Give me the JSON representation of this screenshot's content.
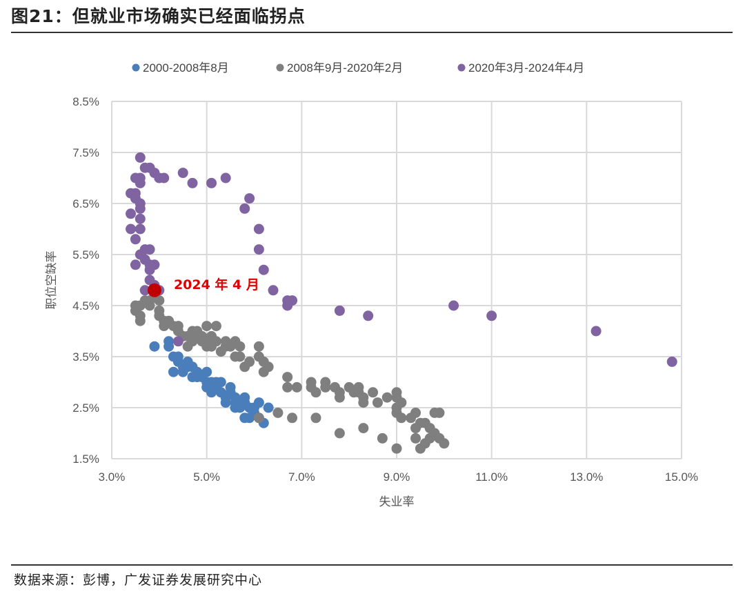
{
  "header": {
    "title": "图21：但就业市场确实已经面临拐点"
  },
  "footer": {
    "source": "数据来源：彭博，广发证券发展研究中心"
  },
  "chart_data": {
    "type": "scatter",
    "xlabel": "失业率",
    "ylabel": "职位空缺率",
    "xlim": [
      3.0,
      15.0
    ],
    "ylim": [
      1.5,
      8.5
    ],
    "x_ticks": [
      "3.0%",
      "5.0%",
      "7.0%",
      "9.0%",
      "11.0%",
      "13.0%",
      "15.0%"
    ],
    "y_ticks": [
      "1.5%",
      "2.5%",
      "3.5%",
      "4.5%",
      "5.5%",
      "6.5%",
      "7.5%",
      "8.5%"
    ],
    "grid": true,
    "legend_position": "top",
    "series": [
      {
        "name": "2000-2008年8月",
        "color": "#4a7ebb",
        "points": [
          [
            3.9,
            3.7
          ],
          [
            4.2,
            3.7
          ],
          [
            4.2,
            3.8
          ],
          [
            4.3,
            3.5
          ],
          [
            4.4,
            3.4
          ],
          [
            4.3,
            3.2
          ],
          [
            4.5,
            3.3
          ],
          [
            4.5,
            3.2
          ],
          [
            4.6,
            3.3
          ],
          [
            4.7,
            3.3
          ],
          [
            4.7,
            3.1
          ],
          [
            4.8,
            3.2
          ],
          [
            4.9,
            3.1
          ],
          [
            5.0,
            3.0
          ],
          [
            5.0,
            3.2
          ],
          [
            5.0,
            2.9
          ],
          [
            5.1,
            2.8
          ],
          [
            5.1,
            3.0
          ],
          [
            5.2,
            2.9
          ],
          [
            5.2,
            3.0
          ],
          [
            5.3,
            2.8
          ],
          [
            5.3,
            3.0
          ],
          [
            5.4,
            2.7
          ],
          [
            5.4,
            2.6
          ],
          [
            5.5,
            2.8
          ],
          [
            5.5,
            2.9
          ],
          [
            5.6,
            2.7
          ],
          [
            5.6,
            2.5
          ],
          [
            5.7,
            2.6
          ],
          [
            5.7,
            2.5
          ],
          [
            5.8,
            2.6
          ],
          [
            5.8,
            2.7
          ],
          [
            5.9,
            2.5
          ],
          [
            5.9,
            2.3
          ],
          [
            6.0,
            2.4
          ],
          [
            6.0,
            2.5
          ],
          [
            6.1,
            2.6
          ],
          [
            6.1,
            2.3
          ],
          [
            6.2,
            2.2
          ],
          [
            6.3,
            2.5
          ],
          [
            4.4,
            3.5
          ],
          [
            4.6,
            3.4
          ],
          [
            4.8,
            3.1
          ],
          [
            5.6,
            2.6
          ],
          [
            5.8,
            2.3
          ]
        ]
      },
      {
        "name": "2008年9月-2020年2月",
        "color": "#7f7f7f",
        "points": [
          [
            3.5,
            4.5
          ],
          [
            3.5,
            4.4
          ],
          [
            3.6,
            4.2
          ],
          [
            3.6,
            4.3
          ],
          [
            3.6,
            4.5
          ],
          [
            3.7,
            4.6
          ],
          [
            3.8,
            4.6
          ],
          [
            3.8,
            4.5
          ],
          [
            3.9,
            4.7
          ],
          [
            4.0,
            4.6
          ],
          [
            4.0,
            4.4
          ],
          [
            4.0,
            4.3
          ],
          [
            4.1,
            4.2
          ],
          [
            4.1,
            4.1
          ],
          [
            4.2,
            4.2
          ],
          [
            4.3,
            4.1
          ],
          [
            4.4,
            4.0
          ],
          [
            4.4,
            4.1
          ],
          [
            4.5,
            3.9
          ],
          [
            4.6,
            3.9
          ],
          [
            4.7,
            4.0
          ],
          [
            4.7,
            3.8
          ],
          [
            4.8,
            4.0
          ],
          [
            4.8,
            3.9
          ],
          [
            4.9,
            3.8
          ],
          [
            4.9,
            3.9
          ],
          [
            5.0,
            4.1
          ],
          [
            5.0,
            3.8
          ],
          [
            5.1,
            3.9
          ],
          [
            5.1,
            3.7
          ],
          [
            5.2,
            4.1
          ],
          [
            5.2,
            3.8
          ],
          [
            5.3,
            3.6
          ],
          [
            5.4,
            3.8
          ],
          [
            5.5,
            3.7
          ],
          [
            5.6,
            3.5
          ],
          [
            5.6,
            3.8
          ],
          [
            5.7,
            3.7
          ],
          [
            5.7,
            3.5
          ],
          [
            5.8,
            3.3
          ],
          [
            5.9,
            3.4
          ],
          [
            6.1,
            3.5
          ],
          [
            6.1,
            3.7
          ],
          [
            6.2,
            3.4
          ],
          [
            6.2,
            3.2
          ],
          [
            6.3,
            3.3
          ],
          [
            6.1,
            2.3
          ],
          [
            6.5,
            2.4
          ],
          [
            6.7,
            2.9
          ],
          [
            6.7,
            3.1
          ],
          [
            6.8,
            2.3
          ],
          [
            6.9,
            2.9
          ],
          [
            7.2,
            3.0
          ],
          [
            7.2,
            2.9
          ],
          [
            7.3,
            2.8
          ],
          [
            7.3,
            2.3
          ],
          [
            7.5,
            3.0
          ],
          [
            7.5,
            2.9
          ],
          [
            7.7,
            2.9
          ],
          [
            7.8,
            2.8
          ],
          [
            7.8,
            2.7
          ],
          [
            7.8,
            2.0
          ],
          [
            8.0,
            2.9
          ],
          [
            8.1,
            2.8
          ],
          [
            8.2,
            2.9
          ],
          [
            8.2,
            2.8
          ],
          [
            8.3,
            2.7
          ],
          [
            8.3,
            2.6
          ],
          [
            8.3,
            2.1
          ],
          [
            8.5,
            2.8
          ],
          [
            8.6,
            2.6
          ],
          [
            8.7,
            1.9
          ],
          [
            8.8,
            2.7
          ],
          [
            9.0,
            2.8
          ],
          [
            9.0,
            2.7
          ],
          [
            9.0,
            2.5
          ],
          [
            9.0,
            2.4
          ],
          [
            9.1,
            2.6
          ],
          [
            9.1,
            2.3
          ],
          [
            9.0,
            1.7
          ],
          [
            9.3,
            2.3
          ],
          [
            9.4,
            2.4
          ],
          [
            9.4,
            2.1
          ],
          [
            9.4,
            1.9
          ],
          [
            9.5,
            2.2
          ],
          [
            9.5,
            1.7
          ],
          [
            9.6,
            1.8
          ],
          [
            9.6,
            2.2
          ],
          [
            9.7,
            2.1
          ],
          [
            9.7,
            1.9
          ],
          [
            9.8,
            2.0
          ],
          [
            9.8,
            2.4
          ],
          [
            9.9,
            2.4
          ],
          [
            9.9,
            1.9
          ],
          [
            10.0,
            1.8
          ],
          [
            4.6,
            3.7
          ],
          [
            5.0,
            3.7
          ],
          [
            5.4,
            3.7
          ]
        ]
      },
      {
        "name": "2020年3月-2024年4月",
        "color": "#8064a2",
        "points": [
          [
            14.8,
            3.4
          ],
          [
            13.2,
            4.0
          ],
          [
            11.0,
            4.3
          ],
          [
            10.2,
            4.5
          ],
          [
            8.4,
            4.3
          ],
          [
            7.8,
            4.4
          ],
          [
            6.8,
            4.6
          ],
          [
            6.7,
            4.6
          ],
          [
            6.7,
            4.5
          ],
          [
            6.4,
            4.8
          ],
          [
            6.2,
            5.2
          ],
          [
            6.1,
            5.6
          ],
          [
            6.1,
            6.0
          ],
          [
            5.9,
            6.6
          ],
          [
            5.8,
            6.4
          ],
          [
            5.4,
            7.0
          ],
          [
            5.1,
            6.9
          ],
          [
            4.7,
            6.9
          ],
          [
            4.5,
            7.1
          ],
          [
            4.1,
            7.0
          ],
          [
            4.0,
            7.0
          ],
          [
            3.9,
            7.1
          ],
          [
            3.8,
            7.2
          ],
          [
            3.7,
            7.2
          ],
          [
            3.6,
            7.4
          ],
          [
            3.6,
            7.0
          ],
          [
            3.5,
            7.0
          ],
          [
            3.6,
            6.9
          ],
          [
            3.5,
            6.7
          ],
          [
            3.4,
            6.7
          ],
          [
            3.5,
            6.6
          ],
          [
            3.6,
            6.5
          ],
          [
            3.6,
            6.4
          ],
          [
            3.4,
            6.3
          ],
          [
            3.6,
            6.2
          ],
          [
            3.4,
            6.0
          ],
          [
            3.6,
            6.0
          ],
          [
            3.5,
            5.8
          ],
          [
            3.7,
            5.6
          ],
          [
            3.8,
            5.6
          ],
          [
            3.6,
            5.5
          ],
          [
            3.7,
            5.4
          ],
          [
            3.5,
            5.3
          ],
          [
            3.8,
            5.3
          ],
          [
            3.9,
            5.3
          ],
          [
            3.8,
            5.2
          ],
          [
            3.8,
            5.0
          ],
          [
            3.9,
            4.9
          ],
          [
            3.7,
            4.8
          ],
          [
            4.0,
            4.8
          ],
          [
            4.4,
            3.8
          ]
        ]
      }
    ],
    "highlight": {
      "x": 3.9,
      "y": 4.8,
      "label": "2024 年 4 月",
      "color": "#c00000"
    }
  }
}
